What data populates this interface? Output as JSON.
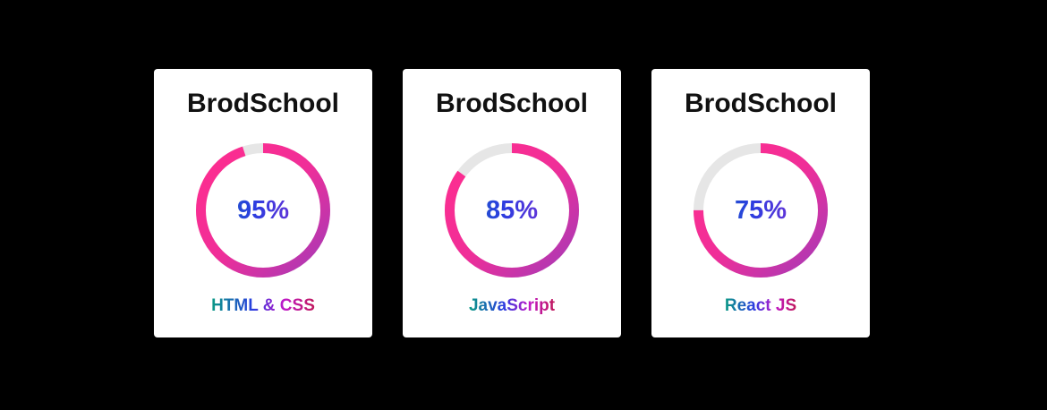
{
  "cards": [
    {
      "title": "BrodSchool",
      "value": 95,
      "value_label": "95%",
      "label": "HTML & CSS"
    },
    {
      "title": "BrodSchool",
      "value": 85,
      "value_label": "85%",
      "label": "JavaScript"
    },
    {
      "title": "BrodSchool",
      "value": 75,
      "value_label": "75%",
      "label": "React JS"
    }
  ]
}
